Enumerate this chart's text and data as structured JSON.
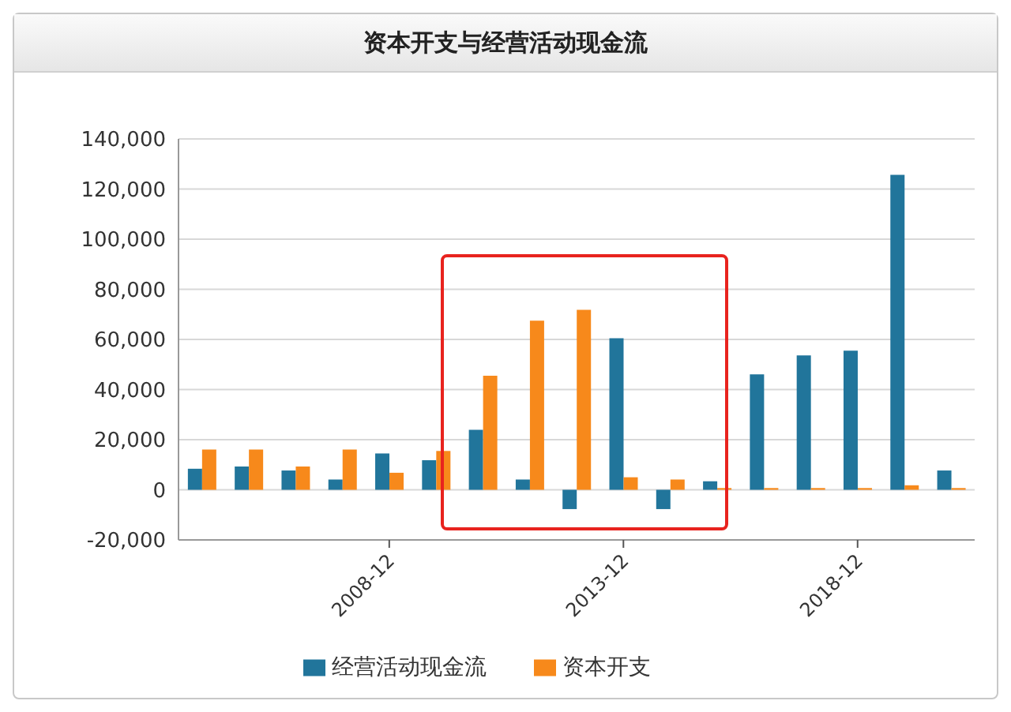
{
  "chart_data": {
    "type": "bar",
    "title": "资本开支与经营活动现金流",
    "categories": [
      null,
      null,
      null,
      null,
      "2008-12",
      null,
      null,
      null,
      null,
      "2013-12",
      null,
      null,
      null,
      null,
      "2018-12",
      null,
      null
    ],
    "series": [
      {
        "name": "经营活动现金流",
        "color": "#21759b",
        "values": [
          8400,
          9300,
          7700,
          4100,
          14500,
          11800,
          23900,
          4100,
          -7700,
          60500,
          -7700,
          3400,
          46100,
          53600,
          55500,
          125700,
          7700
        ]
      },
      {
        "name": "资本开支",
        "color": "#f7891b",
        "values": [
          16100,
          16100,
          9300,
          16100,
          6800,
          15500,
          45500,
          67500,
          71800,
          5000,
          4100,
          700,
          700,
          700,
          700,
          1800,
          700
        ]
      }
    ],
    "ylim": [
      -20000,
      140000
    ],
    "yticks": [
      {
        "value": -20000,
        "label": "-20,000"
      },
      0,
      {
        "value": 20000,
        "label": "20,000"
      },
      {
        "value": 40000,
        "label": "40,000"
      },
      {
        "value": 60000,
        "label": "60,000"
      },
      {
        "value": 80000,
        "label": "80,000"
      },
      {
        "value": 100000,
        "label": "100,000"
      },
      {
        "value": 120000,
        "label": "120,000"
      },
      {
        "value": 140000,
        "label": "140,000"
      }
    ],
    "grid": "y",
    "legend": "bottom"
  }
}
